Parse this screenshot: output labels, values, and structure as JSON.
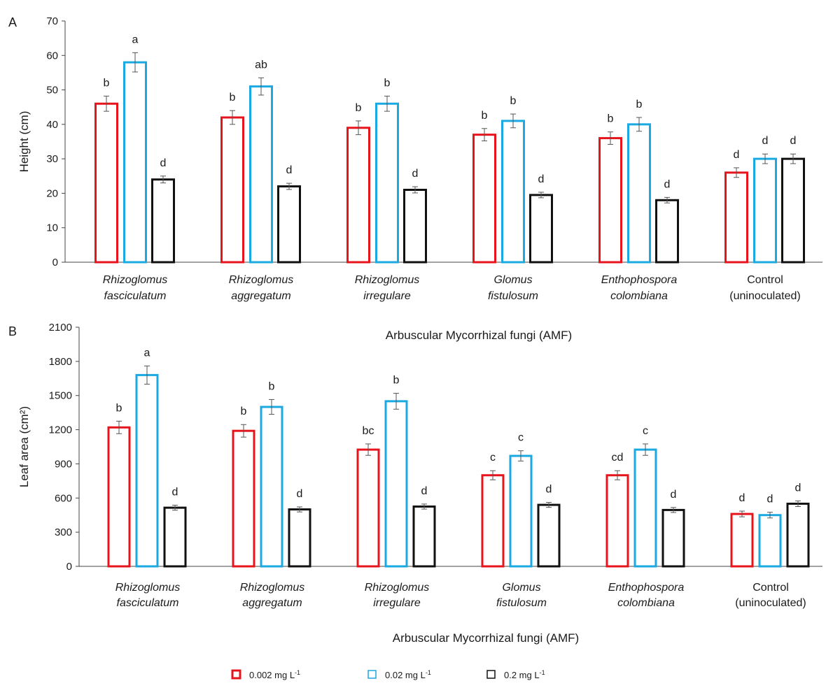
{
  "colors": {
    "s1": "#e8141c",
    "s2": "#1aa9e1",
    "s3": "#111111",
    "axis": "#444444",
    "errorbar": "#555555"
  },
  "legend": [
    {
      "label": "0.002 mg L",
      "sup": "-1"
    },
    {
      "label": "0.02 mg L",
      "sup": "-1"
    },
    {
      "label": "0.2 mg L",
      "sup": "-1"
    }
  ],
  "chart_data": [
    {
      "type": "bar",
      "panel": "A",
      "ylabel": "Height (cm)",
      "xlabel": "Arbuscular Mycorrhizal fungi (AMF)",
      "ylim": [
        0,
        70
      ],
      "yticks": [
        0,
        10,
        20,
        30,
        40,
        50,
        60,
        70
      ],
      "categories": [
        {
          "line1": "Rhizoglomus",
          "line2": "fasciculatum",
          "italic": true
        },
        {
          "line1": "Rhizoglomus",
          "line2": "aggregatum",
          "italic": true
        },
        {
          "line1": "Rhizoglomus",
          "line2": "irregulare",
          "italic": true
        },
        {
          "line1": "Glomus",
          "line2": "fistulosum",
          "italic": true
        },
        {
          "line1": "Enthophospora",
          "line2": "colombiana",
          "italic": true
        },
        {
          "line1": "Control",
          "line2": "(uninoculated)",
          "italic": false
        }
      ],
      "series": [
        {
          "name": "0.002 mg L-1",
          "values": [
            46,
            42,
            39,
            37,
            36,
            26
          ],
          "errors": [
            2.2,
            2.0,
            2.0,
            1.8,
            1.8,
            1.4
          ],
          "labels": [
            "b",
            "b",
            "b",
            "b",
            "b",
            "d"
          ]
        },
        {
          "name": "0.02 mg L-1",
          "values": [
            58,
            51,
            46,
            41,
            40,
            30
          ],
          "errors": [
            2.8,
            2.5,
            2.2,
            2.0,
            2.0,
            1.4
          ],
          "labels": [
            "a",
            "ab",
            "b",
            "b",
            "b",
            "d"
          ]
        },
        {
          "name": "0.2 mg L-1",
          "values": [
            24,
            22,
            21,
            19.5,
            18,
            30
          ],
          "errors": [
            1.0,
            0.9,
            0.9,
            0.8,
            0.8,
            1.4
          ],
          "labels": [
            "d",
            "d",
            "d",
            "d",
            "d",
            "d"
          ]
        }
      ]
    },
    {
      "type": "bar",
      "panel": "B",
      "ylabel": "Leaf area (cm²)",
      "xlabel": "Arbuscular Mycorrhizal fungi (AMF)",
      "ylim": [
        0,
        2100
      ],
      "yticks": [
        0,
        300,
        600,
        900,
        1200,
        1500,
        1800,
        2100
      ],
      "categories": [
        {
          "line1": "Rhizoglomus",
          "line2": "fasciculatum",
          "italic": true
        },
        {
          "line1": "Rhizoglomus",
          "line2": "aggregatum",
          "italic": true
        },
        {
          "line1": "Rhizoglomus",
          "line2": "irregulare",
          "italic": true
        },
        {
          "line1": "Glomus",
          "line2": "fistulosum",
          "italic": true
        },
        {
          "line1": "Enthophospora",
          "line2": "colombiana",
          "italic": true
        },
        {
          "line1": "Control",
          "line2": "(uninoculated)",
          "italic": false
        }
      ],
      "series": [
        {
          "name": "0.002 mg L-1",
          "values": [
            1220,
            1190,
            1025,
            800,
            800,
            460
          ],
          "errors": [
            55,
            55,
            50,
            40,
            40,
            25
          ],
          "labels": [
            "b",
            "b",
            "bc",
            "c",
            "cd",
            "d"
          ]
        },
        {
          "name": "0.02 mg L-1",
          "values": [
            1680,
            1400,
            1450,
            970,
            1025,
            450
          ],
          "errors": [
            80,
            65,
            70,
            45,
            50,
            25
          ],
          "labels": [
            "a",
            "b",
            "b",
            "c",
            "c",
            "d"
          ]
        },
        {
          "name": "0.2 mg L-1",
          "values": [
            515,
            500,
            525,
            540,
            495,
            550
          ],
          "errors": [
            22,
            22,
            22,
            22,
            22,
            25
          ],
          "labels": [
            "d",
            "d",
            "d",
            "d",
            "d",
            "d"
          ]
        }
      ]
    }
  ]
}
